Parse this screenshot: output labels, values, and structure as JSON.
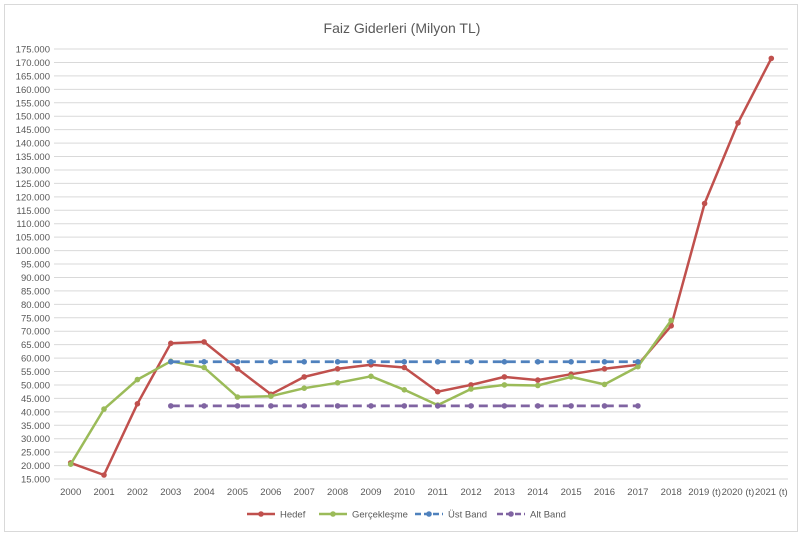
{
  "chart_data": {
    "type": "line",
    "title": "Faiz Giderleri (Milyon TL)",
    "xlabel": "",
    "ylabel": "",
    "categories": [
      "2000",
      "2001",
      "2002",
      "2003",
      "2004",
      "2005",
      "2006",
      "2007",
      "2008",
      "2009",
      "2010",
      "2011",
      "2012",
      "2013",
      "2014",
      "2015",
      "2016",
      "2017",
      "2018",
      "2019 (t)",
      "2020 (t)",
      "2021 (t)"
    ],
    "ylim": [
      15000,
      175000
    ],
    "ystep": 5000,
    "grid": true,
    "legend_position": "bottom",
    "series": [
      {
        "name": "Hedef",
        "color": "#c0504d",
        "dashed": false,
        "values": [
          21000,
          16500,
          43000,
          65500,
          66000,
          56000,
          46500,
          53000,
          56000,
          57500,
          56500,
          47500,
          50000,
          53000,
          51800,
          54000,
          56000,
          57500,
          72000,
          117500,
          147500,
          171500
        ]
      },
      {
        "name": "Gerçekleşme",
        "color": "#9bbb59",
        "dashed": false,
        "values": [
          20500,
          41000,
          52000,
          58800,
          56500,
          45500,
          45800,
          48800,
          50800,
          53200,
          48200,
          42500,
          48500,
          50000,
          49800,
          53000,
          50200,
          56800,
          74000,
          null,
          null,
          null
        ]
      },
      {
        "name": "Üst Band",
        "color": "#4f81bd",
        "dashed": true,
        "values": [
          null,
          null,
          null,
          58600,
          58600,
          58600,
          58600,
          58600,
          58600,
          58600,
          58600,
          58600,
          58600,
          58600,
          58600,
          58600,
          58600,
          58600,
          null,
          null,
          null,
          null
        ]
      },
      {
        "name": "Alt Band",
        "color": "#8064a2",
        "dashed": true,
        "values": [
          null,
          null,
          null,
          42200,
          42200,
          42200,
          42200,
          42200,
          42200,
          42200,
          42200,
          42200,
          42200,
          42200,
          42200,
          42200,
          42200,
          42200,
          null,
          null,
          null,
          null
        ]
      }
    ]
  }
}
